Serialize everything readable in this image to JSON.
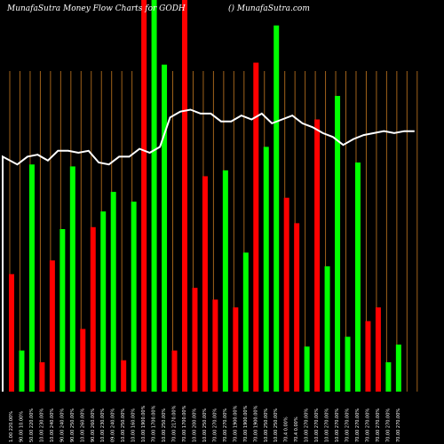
{
  "header": {
    "left": "MunafaSutra  Money Flow  Charts for GODH",
    "right": "() MunafaSutra.com"
  },
  "colors": {
    "background": "#000000",
    "up": "#00ff00",
    "down": "#ff0000",
    "grid": "#a0621a",
    "line": "#ffffff",
    "text": "#ffffff"
  },
  "chart_data": {
    "type": "bar",
    "title": "MunafaSutra  Money Flow  Charts for GODH",
    "xlabel": "",
    "ylabel": "",
    "bars": [
      {
        "value": 0.3,
        "dir": "down"
      },
      {
        "value": 0.105,
        "dir": "up"
      },
      {
        "value": 0.58,
        "dir": "up"
      },
      {
        "value": 0.075,
        "dir": "down"
      },
      {
        "value": 0.335,
        "dir": "down"
      },
      {
        "value": 0.415,
        "dir": "up"
      },
      {
        "value": 0.575,
        "dir": "up"
      },
      {
        "value": 0.16,
        "dir": "down"
      },
      {
        "value": 0.42,
        "dir": "down"
      },
      {
        "value": 0.46,
        "dir": "up"
      },
      {
        "value": 0.51,
        "dir": "up"
      },
      {
        "value": 0.08,
        "dir": "down"
      },
      {
        "value": 0.485,
        "dir": "up"
      },
      {
        "value": 1.0,
        "dir": "down"
      },
      {
        "value": 1.0,
        "dir": "up"
      },
      {
        "value": 0.835,
        "dir": "up"
      },
      {
        "value": 0.105,
        "dir": "down"
      },
      {
        "value": 1.0,
        "dir": "down"
      },
      {
        "value": 0.265,
        "dir": "down"
      },
      {
        "value": 0.55,
        "dir": "down"
      },
      {
        "value": 0.235,
        "dir": "down"
      },
      {
        "value": 0.565,
        "dir": "up"
      },
      {
        "value": 0.215,
        "dir": "down"
      },
      {
        "value": 0.355,
        "dir": "up"
      },
      {
        "value": 0.84,
        "dir": "down"
      },
      {
        "value": 0.625,
        "dir": "up"
      },
      {
        "value": 0.935,
        "dir": "up"
      },
      {
        "value": 0.495,
        "dir": "down"
      },
      {
        "value": 0.43,
        "dir": "down"
      },
      {
        "value": 0.115,
        "dir": "up"
      },
      {
        "value": 0.695,
        "dir": "down"
      },
      {
        "value": 0.32,
        "dir": "up"
      },
      {
        "value": 0.755,
        "dir": "up"
      },
      {
        "value": 0.14,
        "dir": "up"
      },
      {
        "value": 0.585,
        "dir": "up"
      },
      {
        "value": 0.18,
        "dir": "down"
      },
      {
        "value": 0.215,
        "dir": "down"
      },
      {
        "value": 0.075,
        "dir": "up"
      },
      {
        "value": 0.12,
        "dir": "up"
      }
    ],
    "line": [
      0.6,
      0.58,
      0.6,
      0.605,
      0.59,
      0.615,
      0.615,
      0.61,
      0.615,
      0.585,
      0.58,
      0.6,
      0.6,
      0.62,
      0.61,
      0.625,
      0.7,
      0.715,
      0.72,
      0.71,
      0.71,
      0.69,
      0.69,
      0.705,
      0.695,
      0.71,
      0.685,
      0.695,
      0.705,
      0.685,
      0.675,
      0.66,
      0.65,
      0.63,
      0.645,
      0.655,
      0.66,
      0.665,
      0.66,
      0.665,
      0.665
    ],
    "xticks": [
      "1.00 220.00%",
      "90.00 10.00%",
      "50.00 220.00%",
      "10.00 230.00%",
      "10.00 240.00%",
      "90.00 240.00%",
      "90.00 250.00%",
      "10.00 260.00%",
      "90.00 260.00%",
      "10.00 230.00%",
      "09.00 240.00%",
      "10.00 250.00%",
      "10.00 160.00%",
      "10.00 1900.00%",
      "70.00 1700.00%",
      "10.00 250.00%",
      "70.00 2170.00%",
      "70.00 1700.00%",
      "10.00 200.00%",
      "10.00 250.00%",
      "70.00 270.00%",
      "70.00 270.00%",
      "70.00 1900.00%",
      "70.00 1900.00%",
      "70.00 1900.00%",
      "10.00 250.00%",
      "10.00 250.00%",
      "70.4  0.00%",
      "70.4  0.00%",
      "10.00 270.00%",
      "10.00 270.00%",
      "10.00 270.00%",
      "10.00 270.00%",
      "70.00 270.00%",
      "70.00 270.00%",
      "70.00 270.00%",
      "70.00 270.00%",
      "70.00 270.00%",
      "70.00 270.00%"
    ]
  }
}
